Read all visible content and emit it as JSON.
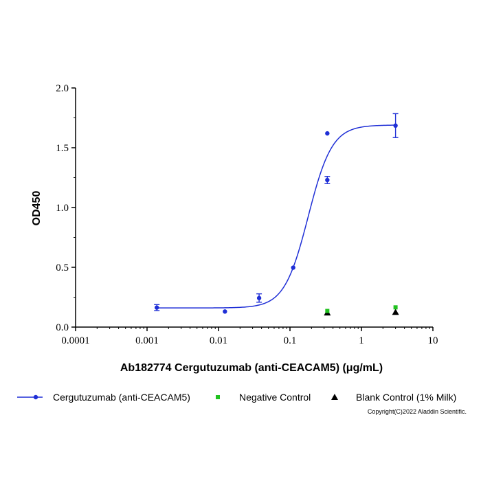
{
  "chart_data": {
    "type": "scatter",
    "title": "",
    "xlabel": "Ab182774 Cergutuzumab (anti-CEACAM5) (μg/mL)",
    "ylabel": "OD450",
    "x_scale": "log",
    "xlim": [
      0.0001,
      10
    ],
    "ylim": [
      0,
      2.0
    ],
    "x_ticks": [
      "0.0001",
      "0.001",
      "0.01",
      "0.1",
      "1",
      "10"
    ],
    "y_ticks": [
      "0.0",
      "0.5",
      "1.0",
      "1.5",
      "2.0"
    ],
    "grid": false,
    "legend_position": "bottom",
    "series": [
      {
        "name": "Cergutuzumab (anti-CEACAM5)",
        "color": "#1f2fd6",
        "marker": "circle",
        "points": [
          {
            "x": 0.00137,
            "y": 0.163,
            "err": 0.025
          },
          {
            "x": 0.0123,
            "y": 0.13,
            "err": 0
          },
          {
            "x": 0.037,
            "y": 0.243,
            "err": 0.035
          },
          {
            "x": 0.111,
            "y": 0.497,
            "err": 0
          },
          {
            "x": 0.333,
            "y": 1.62,
            "err": 0
          },
          {
            "x": 0.333,
            "y": 1.23,
            "err": 0.03
          },
          {
            "x": 3.0,
            "y": 1.685,
            "err": 0.1
          }
        ],
        "fit": {
          "bottom": 0.16,
          "top": 1.69,
          "ec50": 0.18,
          "hill": 2.6
        }
      },
      {
        "name": "Negative Control",
        "color": "#21c21f",
        "marker": "square",
        "points": [
          {
            "x": 0.333,
            "y": 0.135
          },
          {
            "x": 3.0,
            "y": 0.165
          }
        ]
      },
      {
        "name": "Blank Control (1% Milk)",
        "color": "#000000",
        "marker": "triangle",
        "points": [
          {
            "x": 0.333,
            "y": 0.12
          },
          {
            "x": 3.0,
            "y": 0.125
          }
        ]
      }
    ]
  },
  "copyright": "Copyright(C)2022 Aladdin Scientific."
}
